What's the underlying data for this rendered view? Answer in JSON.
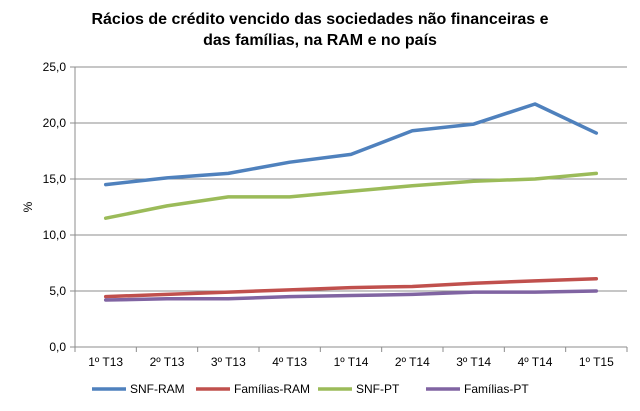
{
  "chart_data": {
    "type": "line",
    "title_lines": [
      "Rácios de crédito vencido  das sociedades  não financeiras  e",
      "das famílias, na RAM e no país"
    ],
    "xlabel": "",
    "ylabel": "%",
    "ylim": [
      0,
      25
    ],
    "yticks": [
      "0,0",
      "5,0",
      "10,0",
      "15,0",
      "20,0",
      "25,0"
    ],
    "ytick_values": [
      0,
      5,
      10,
      15,
      20,
      25
    ],
    "categories": [
      "1º T13",
      "2º T13",
      "3º T13",
      "4º T13",
      "1º T14",
      "2º T14",
      "3º T14",
      "4º T14",
      "1º T15"
    ],
    "grid": true,
    "legend_position": "bottom",
    "series": [
      {
        "name": "SNF-RAM",
        "color": "#4F81BD",
        "values": [
          14.5,
          15.1,
          15.5,
          16.5,
          17.2,
          19.3,
          19.9,
          21.7,
          19.1
        ]
      },
      {
        "name": "Famílias-RAM",
        "color": "#C0504D",
        "values": [
          4.5,
          4.7,
          4.9,
          5.1,
          5.3,
          5.4,
          5.7,
          5.9,
          6.1
        ]
      },
      {
        "name": "SNF-PT",
        "color": "#9BBB59",
        "values": [
          11.5,
          12.6,
          13.4,
          13.4,
          13.9,
          14.4,
          14.8,
          15.0,
          15.5
        ]
      },
      {
        "name": "Famílias-PT",
        "color": "#8064A2",
        "values": [
          4.2,
          4.3,
          4.3,
          4.5,
          4.6,
          4.7,
          4.9,
          4.9,
          5.0
        ]
      }
    ]
  }
}
